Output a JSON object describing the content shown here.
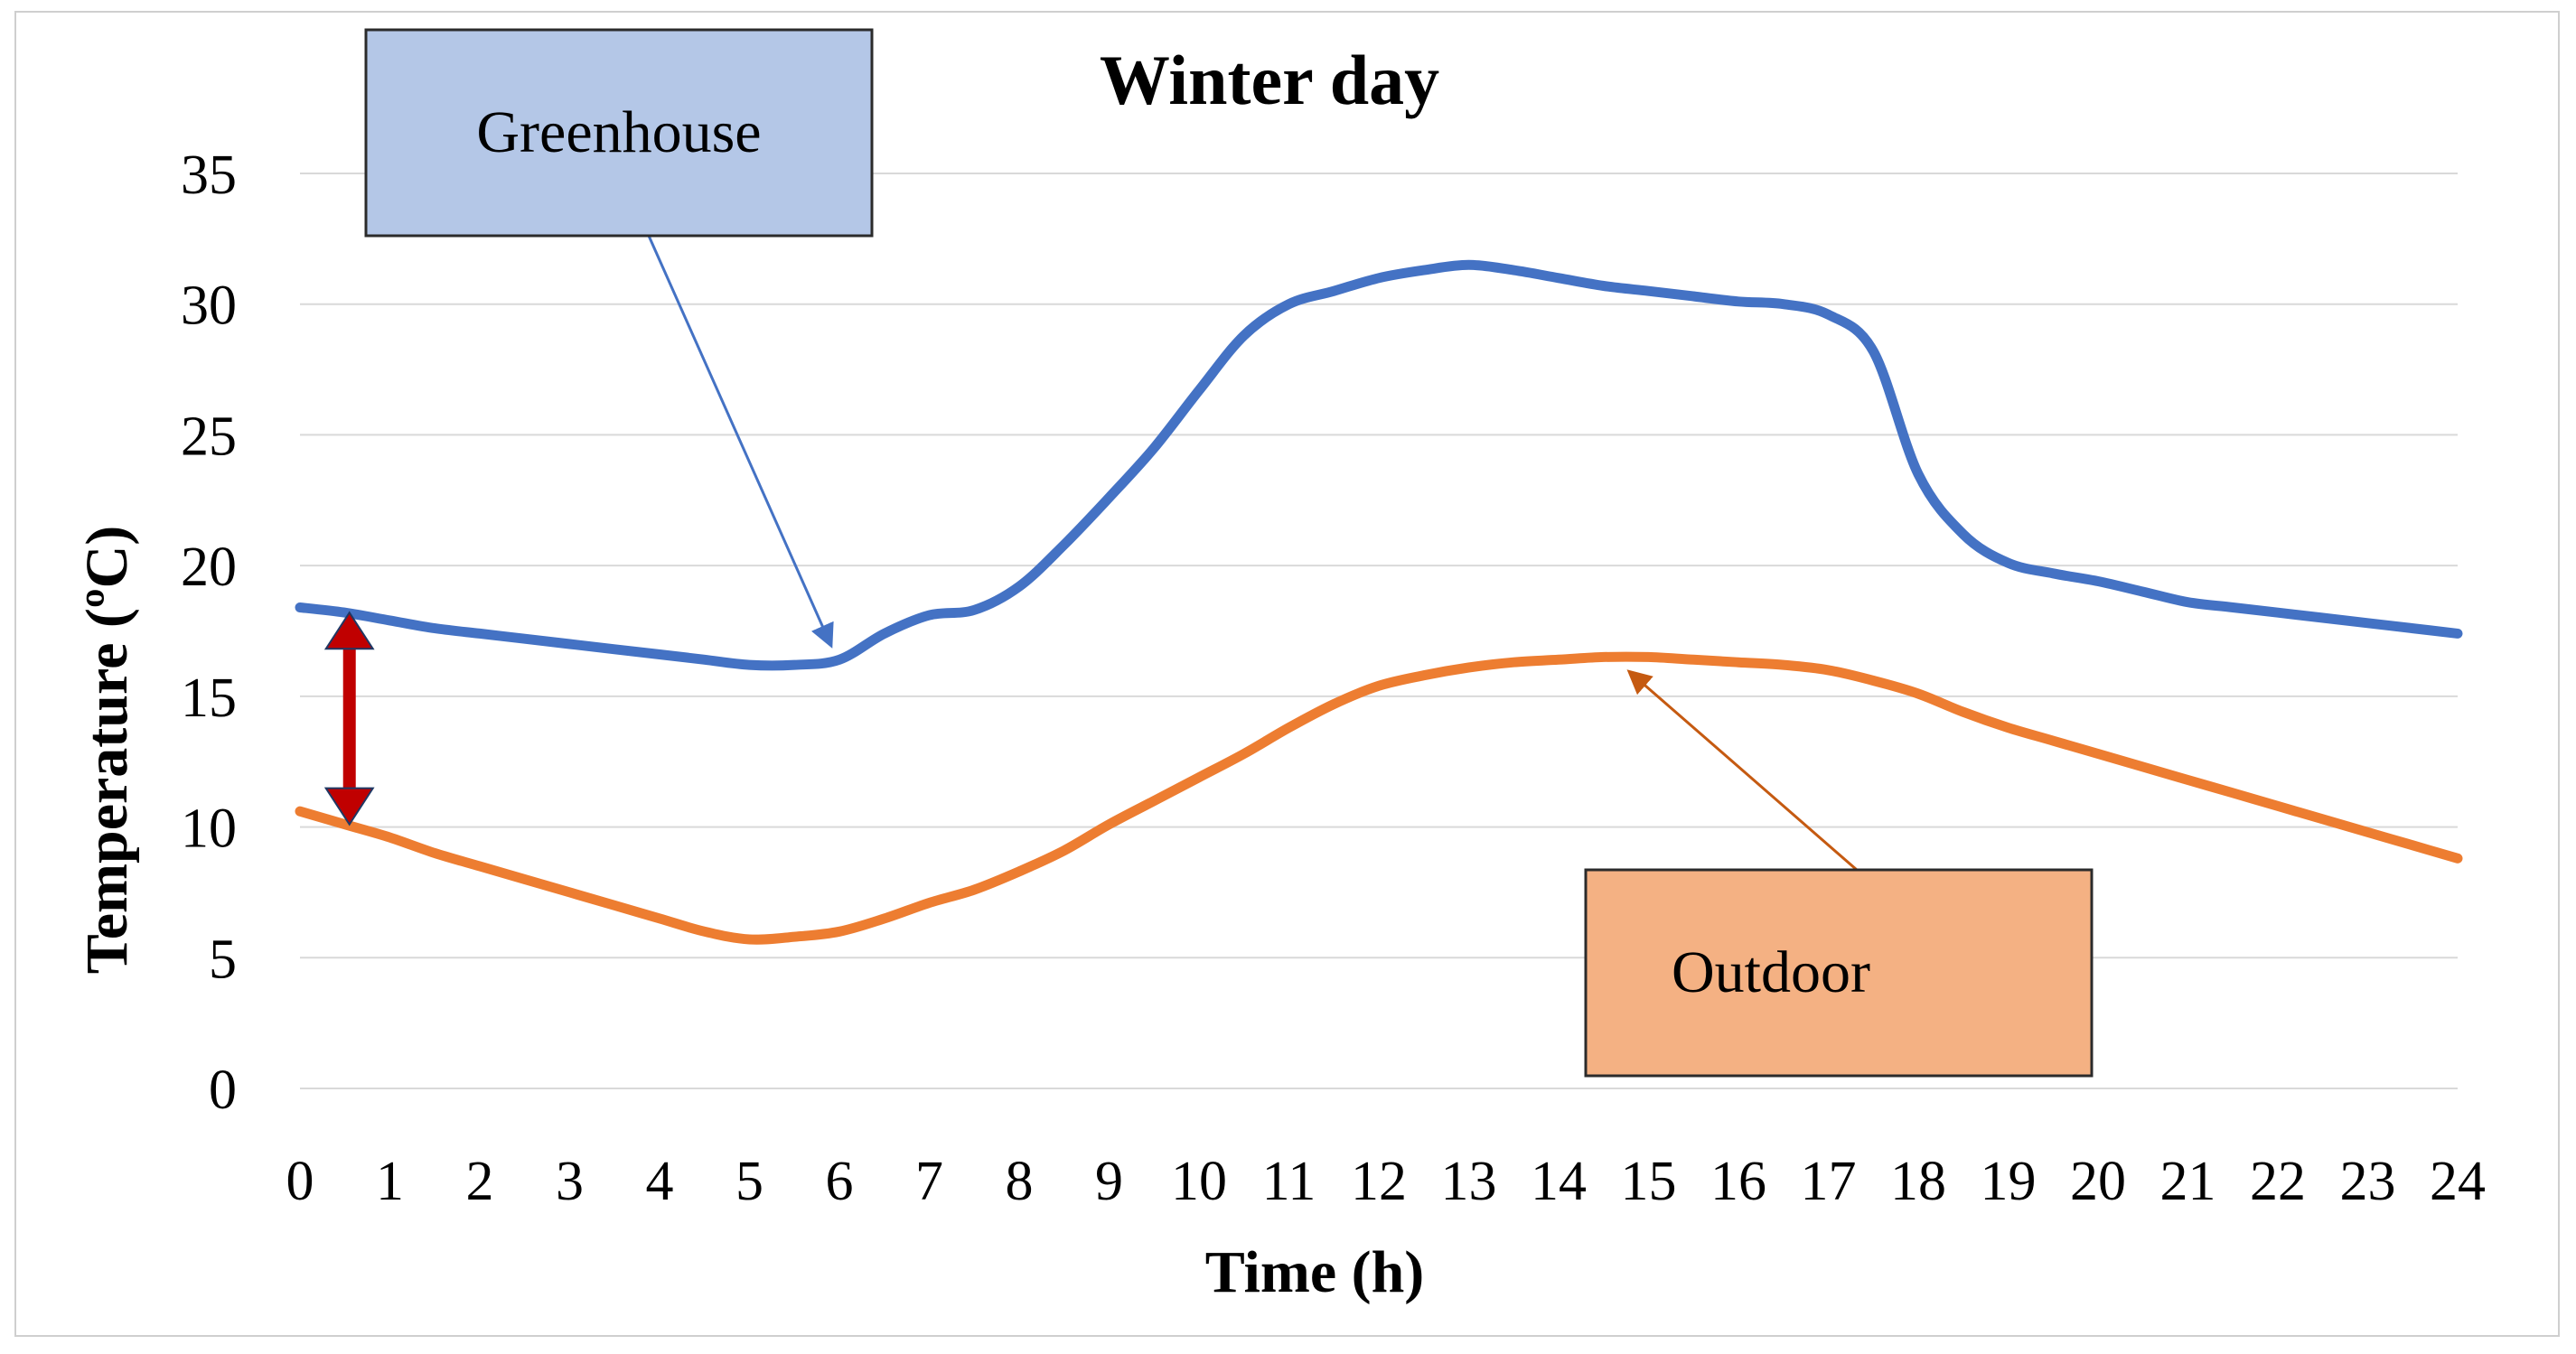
{
  "chart_data": {
    "type": "line",
    "title": "Winter day",
    "xlabel": "Time (h)",
    "ylabel": "Temperature (ºC)",
    "xlim": [
      0,
      24
    ],
    "ylim": [
      0,
      35
    ],
    "x_ticks": [
      "0",
      "1",
      "2",
      "3",
      "4",
      "5",
      "6",
      "7",
      "8",
      "9",
      "10",
      "11",
      "12",
      "13",
      "14",
      "15",
      "16",
      "17",
      "18",
      "19",
      "20",
      "21",
      "22",
      "23",
      "24"
    ],
    "y_ticks": [
      "0",
      "5",
      "10",
      "15",
      "20",
      "25",
      "30",
      "35"
    ],
    "grid": true,
    "series": [
      {
        "name": "Greenhouse",
        "color": "#4472C4",
        "x": [
          0,
          0.5,
          1,
          1.5,
          2,
          2.5,
          3,
          3.5,
          4,
          4.5,
          5,
          5.5,
          6,
          6.5,
          7,
          7.5,
          8,
          8.5,
          9,
          9.5,
          10,
          10.5,
          11,
          11.5,
          12,
          12.5,
          13,
          13.5,
          14,
          14.5,
          15,
          15.5,
          16,
          16.5,
          17,
          17.5,
          18,
          18.5,
          19,
          19.5,
          20,
          20.5,
          21,
          21.5,
          22,
          22.5,
          23,
          23.5,
          24
        ],
        "values": [
          18.4,
          18.2,
          17.9,
          17.6,
          17.4,
          17.2,
          17.0,
          16.8,
          16.6,
          16.4,
          16.2,
          16.2,
          16.4,
          17.4,
          18.1,
          18.3,
          19.2,
          20.8,
          22.6,
          24.5,
          26.7,
          28.8,
          30.0,
          30.5,
          31.0,
          31.3,
          31.5,
          31.3,
          31.0,
          30.7,
          30.5,
          30.3,
          30.1,
          30.0,
          29.6,
          28.2,
          23.5,
          21.2,
          20.1,
          19.7,
          19.4,
          19.0,
          18.6,
          18.4,
          18.2,
          18.0,
          17.8,
          17.6,
          17.4
        ]
      },
      {
        "name": "Outdoor",
        "color": "#ED7D31",
        "x": [
          0,
          0.5,
          1,
          1.5,
          2,
          2.5,
          3,
          3.5,
          4,
          4.5,
          5,
          5.5,
          6,
          6.5,
          7,
          7.5,
          8,
          8.5,
          9,
          9.5,
          10,
          10.5,
          11,
          11.5,
          12,
          12.5,
          13,
          13.5,
          14,
          14.5,
          15,
          15.5,
          16,
          16.5,
          17,
          17.5,
          18,
          18.5,
          19,
          19.5,
          20,
          20.5,
          21,
          21.5,
          22,
          22.5,
          23,
          23.5,
          24
        ],
        "values": [
          10.6,
          10.1,
          9.6,
          9.0,
          8.5,
          8.0,
          7.5,
          7.0,
          6.5,
          6.0,
          5.7,
          5.8,
          6.0,
          6.5,
          7.1,
          7.6,
          8.3,
          9.1,
          10.1,
          11.0,
          11.9,
          12.8,
          13.8,
          14.7,
          15.4,
          15.8,
          16.1,
          16.3,
          16.4,
          16.5,
          16.5,
          16.4,
          16.3,
          16.2,
          16.0,
          15.6,
          15.1,
          14.4,
          13.8,
          13.3,
          12.8,
          12.3,
          11.8,
          11.3,
          10.8,
          10.3,
          9.8,
          9.3,
          8.8
        ]
      }
    ],
    "annotations": [
      {
        "label": "Greenhouse",
        "fill": "#B4C7E7",
        "arrow_color": "#4472C4",
        "arrow_to": [
          5.9,
          17.0
        ]
      },
      {
        "label": "Outdoor",
        "fill": "#F4B183",
        "arrow_color": "#C55A11",
        "arrow_to": [
          14.8,
          15.9
        ]
      }
    ],
    "difference_arrow": {
      "x": 0.55,
      "y_from": 18.2,
      "y_to": 10.1,
      "color": "#C00000"
    }
  }
}
